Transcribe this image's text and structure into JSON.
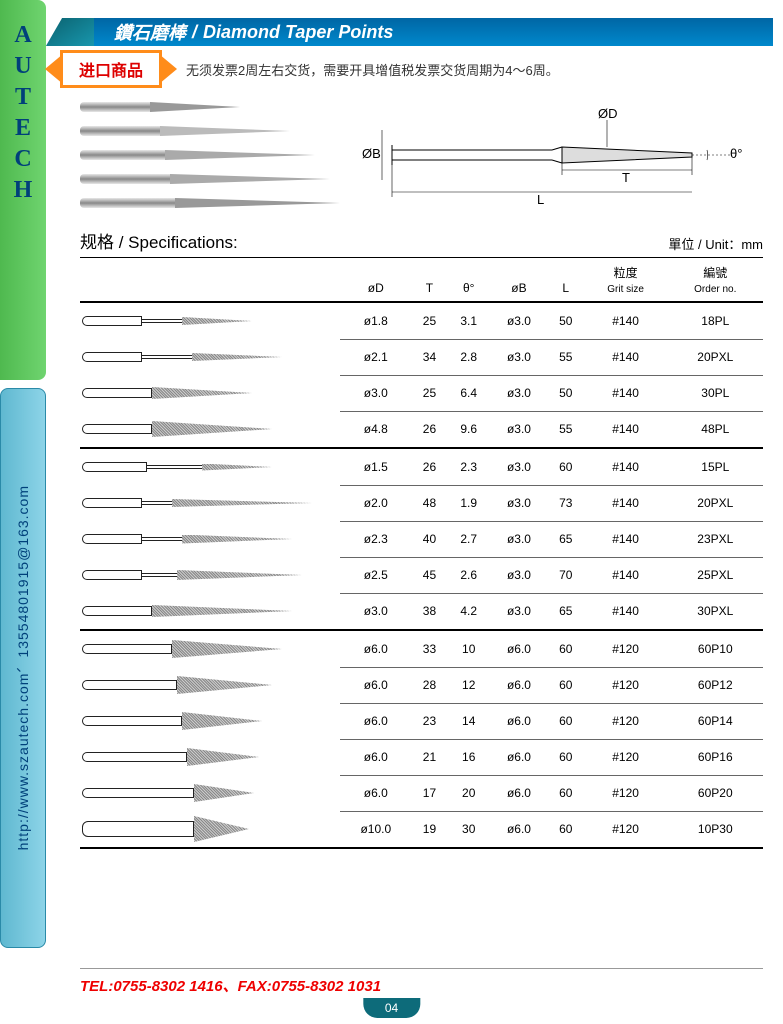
{
  "brand_letters": [
    "A",
    "U",
    "T",
    "E",
    "C",
    "H"
  ],
  "sidebar_url": "http://www.szautech.com、13554801915@163.com",
  "header_cn": "鑽石磨棒",
  "header_en": "Diamond Taper Points",
  "badge": "进口商品",
  "notice": "无须发票2周左右交货，需要开具增值税发票交货周期为4～6周。",
  "diagram_labels": {
    "ob": "ØB",
    "od": "ØD",
    "t": "T",
    "l": "L",
    "theta": "θ°"
  },
  "spec_label": "规格 / Specifications:",
  "unit_label": "單位 / Unit：mm",
  "columns": {
    "od": "øD",
    "t": "T",
    "theta": "θ°",
    "ob": "øB",
    "l": "L",
    "grit_cn": "粒度",
    "grit_en": "Grit size",
    "order_cn": "編號",
    "order_en": "Order no."
  },
  "product_images": [
    {
      "shank_w": 70,
      "tip_w": 90,
      "tip_color": "#999"
    },
    {
      "shank_w": 80,
      "tip_w": 130,
      "tip_color": "#bbb"
    },
    {
      "shank_w": 85,
      "tip_w": 150,
      "tip_color": "#aaa"
    },
    {
      "shank_w": 90,
      "tip_w": 160,
      "tip_color": "#aaa"
    },
    {
      "shank_w": 95,
      "tip_w": 165,
      "tip_color": "#999"
    }
  ],
  "rows": [
    {
      "shape": {
        "handle": 60,
        "stem": 40,
        "cone_w": 70,
        "cone_h": 8
      },
      "od": "ø1.8",
      "t": "25",
      "theta": "3.1",
      "ob": "ø3.0",
      "l": "50",
      "grit": "#140",
      "order": "18PL",
      "group_end": false
    },
    {
      "shape": {
        "handle": 60,
        "stem": 50,
        "cone_w": 90,
        "cone_h": 8
      },
      "od": "ø2.1",
      "t": "34",
      "theta": "2.8",
      "ob": "ø3.0",
      "l": "55",
      "grit": "#140",
      "order": "20PXL",
      "group_end": false
    },
    {
      "shape": {
        "handle": 70,
        "stem": 0,
        "cone_w": 100,
        "cone_h": 12
      },
      "od": "ø3.0",
      "t": "25",
      "theta": "6.4",
      "ob": "ø3.0",
      "l": "50",
      "grit": "#140",
      "order": "30PL",
      "group_end": false
    },
    {
      "shape": {
        "handle": 70,
        "stem": 0,
        "cone_w": 120,
        "cone_h": 16
      },
      "od": "ø4.8",
      "t": "26",
      "theta": "9.6",
      "ob": "ø3.0",
      "l": "55",
      "grit": "#140",
      "order": "48PL",
      "group_end": true
    },
    {
      "shape": {
        "handle": 65,
        "stem": 55,
        "cone_w": 70,
        "cone_h": 7
      },
      "od": "ø1.5",
      "t": "26",
      "theta": "2.3",
      "ob": "ø3.0",
      "l": "60",
      "grit": "#140",
      "order": "15PL",
      "group_end": false
    },
    {
      "shape": {
        "handle": 60,
        "stem": 30,
        "cone_w": 140,
        "cone_h": 8
      },
      "od": "ø2.0",
      "t": "48",
      "theta": "1.9",
      "ob": "ø3.0",
      "l": "73",
      "grit": "#140",
      "order": "20PXL",
      "group_end": false
    },
    {
      "shape": {
        "handle": 60,
        "stem": 40,
        "cone_w": 110,
        "cone_h": 9
      },
      "od": "ø2.3",
      "t": "40",
      "theta": "2.7",
      "ob": "ø3.0",
      "l": "65",
      "grit": "#140",
      "order": "23PXL",
      "group_end": false
    },
    {
      "shape": {
        "handle": 60,
        "stem": 35,
        "cone_w": 125,
        "cone_h": 10
      },
      "od": "ø2.5",
      "t": "45",
      "theta": "2.6",
      "ob": "ø3.0",
      "l": "70",
      "grit": "#140",
      "order": "25PXL",
      "group_end": false
    },
    {
      "shape": {
        "handle": 70,
        "stem": 0,
        "cone_w": 140,
        "cone_h": 12
      },
      "od": "ø3.0",
      "t": "38",
      "theta": "4.2",
      "ob": "ø3.0",
      "l": "65",
      "grit": "#140",
      "order": "30PXL",
      "group_end": true
    },
    {
      "shape": {
        "handle": 90,
        "stem": 0,
        "cone_w": 110,
        "cone_h": 18
      },
      "od": "ø6.0",
      "t": "33",
      "theta": "10",
      "ob": "ø6.0",
      "l": "60",
      "grit": "#120",
      "order": "60P10",
      "group_end": false
    },
    {
      "shape": {
        "handle": 95,
        "stem": 0,
        "cone_w": 95,
        "cone_h": 18
      },
      "od": "ø6.0",
      "t": "28",
      "theta": "12",
      "ob": "ø6.0",
      "l": "60",
      "grit": "#120",
      "order": "60P12",
      "group_end": false
    },
    {
      "shape": {
        "handle": 100,
        "stem": 0,
        "cone_w": 80,
        "cone_h": 18
      },
      "od": "ø6.0",
      "t": "23",
      "theta": "14",
      "ob": "ø6.0",
      "l": "60",
      "grit": "#120",
      "order": "60P14",
      "group_end": false
    },
    {
      "shape": {
        "handle": 105,
        "stem": 0,
        "cone_w": 72,
        "cone_h": 18
      },
      "od": "ø6.0",
      "t": "21",
      "theta": "16",
      "ob": "ø6.0",
      "l": "60",
      "grit": "#120",
      "order": "60P16",
      "group_end": false
    },
    {
      "shape": {
        "handle": 112,
        "stem": 0,
        "cone_w": 60,
        "cone_h": 18
      },
      "od": "ø6.0",
      "t": "17",
      "theta": "20",
      "ob": "ø6.0",
      "l": "60",
      "grit": "#120",
      "order": "60P20",
      "group_end": false
    },
    {
      "shape": {
        "handle": 112,
        "stem": 0,
        "cone_w": 55,
        "cone_h": 26
      },
      "od": "ø10.0",
      "t": "19",
      "theta": "30",
      "ob": "ø6.0",
      "l": "60",
      "grit": "#120",
      "order": "10P30",
      "group_end": true
    }
  ],
  "footer_contact": "TEL:0755-8302 1416、FAX:0755-8302 1031",
  "page_number": "04"
}
